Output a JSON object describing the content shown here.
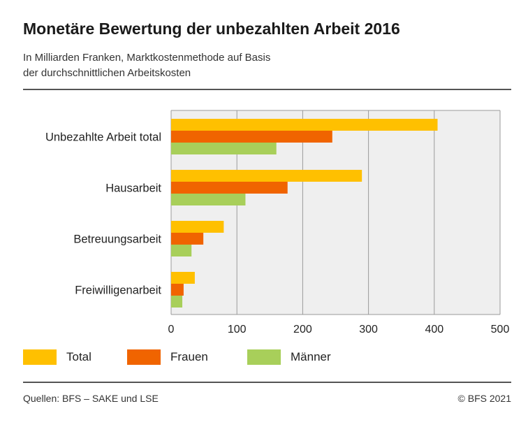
{
  "title": "Monetäre Bewertung der unbezahlten Arbeit 2016",
  "subtitle_lines": [
    "In Milliarden Franken, Marktkostenmethode auf Basis",
    "der durchschnittlichen Arbeitskosten"
  ],
  "footer": {
    "source": "Quellen: BFS – SAKE und LSE",
    "copyright": "© BFS 2021"
  },
  "colors": {
    "Total": "#ffc000",
    "Frauen": "#f06400",
    "Männer": "#a8cf5a",
    "plot_bg": "#efefef",
    "grid": "#9a9a9a"
  },
  "chart_data": {
    "type": "bar",
    "orientation": "horizontal",
    "title": "Monetäre Bewertung der unbezahlten Arbeit 2016",
    "categories": [
      "Unbezahlte Arbeit total",
      "Hausarbeit",
      "Betreuungsarbeit",
      "Freiwilligenarbeit"
    ],
    "series": [
      {
        "name": "Total",
        "values": [
          405,
          290,
          80,
          36
        ]
      },
      {
        "name": "Frauen",
        "values": [
          245,
          177,
          49,
          19
        ]
      },
      {
        "name": "Männer",
        "values": [
          160,
          113,
          31,
          17
        ]
      }
    ],
    "xlim": [
      0,
      500
    ],
    "xticks": [
      0,
      100,
      200,
      300,
      400,
      500
    ],
    "grid": true,
    "legend_position": "bottom"
  }
}
